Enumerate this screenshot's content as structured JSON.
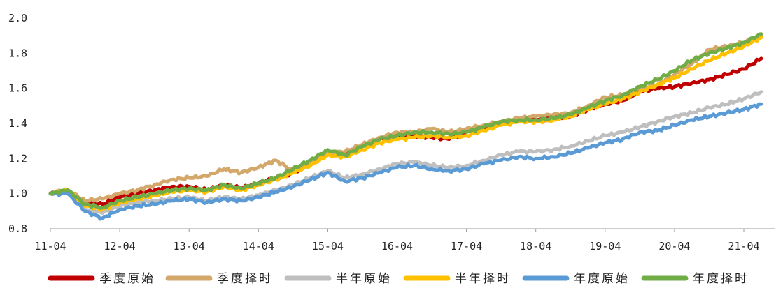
{
  "chart_data": {
    "type": "line",
    "title": "",
    "xlabel": "",
    "ylabel": "",
    "ylim": [
      0.8,
      2.0
    ],
    "yticks": [
      "0.8",
      "1.0",
      "1.2",
      "1.4",
      "1.6",
      "1.8",
      "2.0"
    ],
    "xticks": [
      "11-04",
      "12-04",
      "13-04",
      "14-04",
      "15-04",
      "16-04",
      "17-04",
      "18-04",
      "19-04",
      "20-04",
      "21-04"
    ],
    "grid": false,
    "legend_position": "bottom",
    "x": [
      "11-04",
      "11-07",
      "11-10",
      "12-01",
      "12-04",
      "12-07",
      "12-10",
      "13-01",
      "13-04",
      "13-07",
      "13-10",
      "14-01",
      "14-04",
      "14-07",
      "14-10",
      "15-01",
      "15-04",
      "15-07",
      "15-10",
      "16-01",
      "16-04",
      "16-07",
      "16-10",
      "17-01",
      "17-04",
      "17-07",
      "17-10",
      "18-01",
      "18-04",
      "18-07",
      "18-10",
      "19-01",
      "19-04",
      "19-07",
      "19-10",
      "20-01",
      "20-04",
      "20-07",
      "20-10",
      "21-01",
      "21-04",
      "21-07"
    ],
    "series": [
      {
        "name": "季度原始",
        "color": "#C00000",
        "values": [
          1.0,
          1.02,
          0.95,
          0.94,
          0.98,
          1.0,
          1.02,
          1.04,
          1.04,
          1.02,
          1.05,
          1.03,
          1.06,
          1.09,
          1.12,
          1.17,
          1.23,
          1.22,
          1.27,
          1.31,
          1.33,
          1.33,
          1.32,
          1.31,
          1.35,
          1.37,
          1.4,
          1.42,
          1.42,
          1.43,
          1.44,
          1.48,
          1.51,
          1.53,
          1.58,
          1.6,
          1.61,
          1.63,
          1.65,
          1.68,
          1.71,
          1.77
        ]
      },
      {
        "name": "季度择时",
        "color": "#D4A76A",
        "values": [
          1.0,
          1.02,
          0.96,
          0.97,
          1.0,
          1.02,
          1.05,
          1.08,
          1.09,
          1.1,
          1.14,
          1.12,
          1.15,
          1.19,
          1.13,
          1.18,
          1.23,
          1.24,
          1.28,
          1.32,
          1.35,
          1.35,
          1.37,
          1.35,
          1.37,
          1.39,
          1.41,
          1.43,
          1.44,
          1.45,
          1.46,
          1.5,
          1.55,
          1.56,
          1.6,
          1.62,
          1.68,
          1.74,
          1.82,
          1.84,
          1.86,
          1.9
        ]
      },
      {
        "name": "半年原始",
        "color": "#BFBFBF",
        "values": [
          1.0,
          1.01,
          0.91,
          0.89,
          0.93,
          0.95,
          0.96,
          0.97,
          0.98,
          0.96,
          0.98,
          0.97,
          0.99,
          1.02,
          1.05,
          1.09,
          1.13,
          1.09,
          1.11,
          1.14,
          1.17,
          1.18,
          1.16,
          1.15,
          1.16,
          1.19,
          1.22,
          1.24,
          1.24,
          1.25,
          1.27,
          1.3,
          1.33,
          1.35,
          1.38,
          1.41,
          1.44,
          1.46,
          1.49,
          1.51,
          1.54,
          1.58
        ]
      },
      {
        "name": "半年择时",
        "color": "#FFC000",
        "values": [
          1.0,
          1.02,
          0.93,
          0.91,
          0.95,
          0.97,
          0.99,
          1.01,
          1.02,
          1.01,
          1.04,
          1.02,
          1.05,
          1.08,
          1.12,
          1.16,
          1.22,
          1.21,
          1.25,
          1.29,
          1.31,
          1.32,
          1.33,
          1.32,
          1.33,
          1.36,
          1.39,
          1.41,
          1.41,
          1.42,
          1.44,
          1.48,
          1.51,
          1.54,
          1.58,
          1.62,
          1.66,
          1.71,
          1.76,
          1.8,
          1.84,
          1.89
        ]
      },
      {
        "name": "年度原始",
        "color": "#5B9BD5",
        "values": [
          1.0,
          1.0,
          0.9,
          0.86,
          0.91,
          0.93,
          0.94,
          0.96,
          0.97,
          0.95,
          0.97,
          0.96,
          0.98,
          1.01,
          1.04,
          1.08,
          1.12,
          1.07,
          1.09,
          1.12,
          1.15,
          1.16,
          1.14,
          1.13,
          1.14,
          1.17,
          1.19,
          1.21,
          1.2,
          1.21,
          1.23,
          1.26,
          1.29,
          1.31,
          1.35,
          1.36,
          1.39,
          1.42,
          1.44,
          1.46,
          1.48,
          1.51
        ]
      },
      {
        "name": "年度择时",
        "color": "#70AD47",
        "values": [
          1.0,
          1.02,
          0.94,
          0.92,
          0.96,
          0.98,
          1.0,
          1.02,
          1.03,
          1.02,
          1.05,
          1.03,
          1.06,
          1.09,
          1.14,
          1.19,
          1.25,
          1.22,
          1.27,
          1.31,
          1.33,
          1.35,
          1.35,
          1.34,
          1.35,
          1.38,
          1.41,
          1.42,
          1.42,
          1.43,
          1.45,
          1.49,
          1.53,
          1.56,
          1.61,
          1.65,
          1.7,
          1.76,
          1.8,
          1.83,
          1.86,
          1.91
        ]
      }
    ]
  }
}
